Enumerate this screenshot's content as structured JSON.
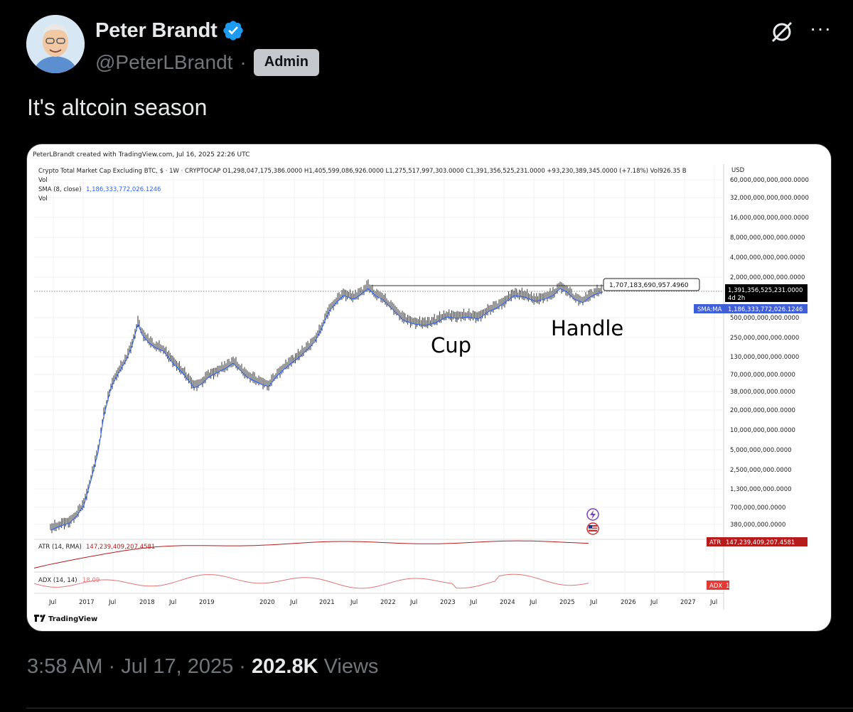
{
  "author": {
    "name": "Peter Brandt",
    "handle": "@PeterLBrandt",
    "separator": "·",
    "badge": "Admin",
    "verified": true,
    "avatar_icon": "cartoon-avatar-icon"
  },
  "actions": {
    "grok_icon": "grok-slash-icon",
    "more_label": "···"
  },
  "tweet": {
    "text": "It's altcoin season"
  },
  "chart": {
    "credit": "PeterLBrandt created with TradingView.com, Jul 16, 2025 22:26 UTC",
    "symbol_line": "Crypto Total Market Cap Excluding BTC, $ · 1W · CRYPTOCAP  O1,298,047,175,386.0000  H1,405,599,086,926.0000  L1,275,517,997,303.0000  C1,391,356,525,231.0000  +93,230,389,345.0000 (+7.18%)  Vol926.35 B",
    "vol_label": "Vol",
    "sma_name": "SMA (8, close)",
    "sma_value": "1,186,333,772,026.1246",
    "vol_label2": "Vol",
    "currency": "USD",
    "price_axis": [
      "60,000,000,000,000.0000",
      "32,000,000,000,000.0000",
      "16,000,000,000,000.0000",
      "8,000,000,000,000.0000",
      "4,000,000,000,000.0000",
      "2,000,000,000,000.0000",
      "500,000,000,000.0000",
      "250,000,000,000.0000",
      "130,000,000,000.0000",
      "70,000,000,000.0000",
      "38,000,000,000.0000",
      "20,000,000,000.0000",
      "10,000,000,000.0000",
      "5,000,000,000.0000",
      "2,500,000,000.0000",
      "1,300,000,000.0000",
      "700,000,000.0000",
      "380,000,000.0000"
    ],
    "resistance_label": "1,707,183,690,957.4960",
    "last_price": "1,391,356,525,231.0000",
    "last_countdown": "4d 2h",
    "sma_tag": "SMA:MA",
    "sma_tag_value": "1,186,333,772,026.1246",
    "annotation_cup": "Cup",
    "annotation_handle": "Handle",
    "atr_name": "ATR (14, RMA)",
    "atr_value": "147,239,409,207.4581",
    "atr_tag": "ATR",
    "adx_name": "ADX (14, 14)",
    "adx_value": "18.09",
    "adx_tag": "ADX",
    "time_axis": [
      "Jul",
      "2017",
      "Jul",
      "2018",
      "Jul",
      "2019",
      "2020",
      "Jul",
      "2021",
      "Jul",
      "2022",
      "Jul",
      "2023",
      "Jul",
      "2024",
      "Jul",
      "2025",
      "Jul",
      "2026",
      "Jul",
      "2027",
      "Jul"
    ],
    "logo_text": "TradingView",
    "colors": {
      "candles": "#1a1a1a",
      "sma": "#2962ff",
      "atr": "#b71c1c",
      "adx": "#e57373",
      "resistance": "#333333"
    }
  },
  "meta": {
    "time": "3:58 AM",
    "separator": "·",
    "date": "Jul 17, 2025",
    "separator2": "·",
    "views_count": "202.8K",
    "views_label": "Views"
  }
}
